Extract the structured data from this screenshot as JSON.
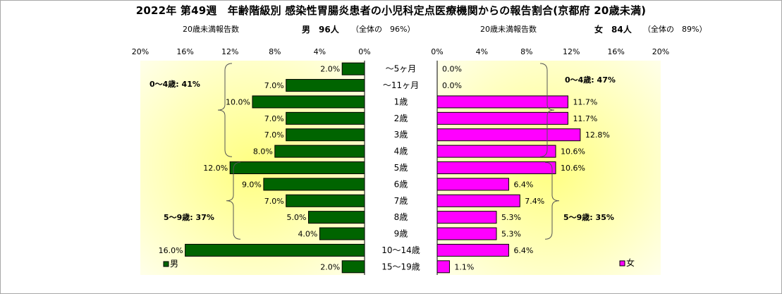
{
  "title": "2022年 第49週　年齢階級別 感染性胃腸炎患者の小児科定点医療機関からの報告割合(京都府 20歳未満)",
  "male_header": {
    "label": "20歳未満報告数",
    "count": "男　96人",
    "share": "（全体の　96%）"
  },
  "female_header": {
    "label": "20歳未満報告数",
    "count": "女　84人",
    "share": "（全体の　89%）"
  },
  "colors": {
    "male": "#006400",
    "female": "#ff00ff",
    "plot_fill": "#fffff0",
    "plot_glow": "#ffff80"
  },
  "chart_data": [
    {
      "type": "bar",
      "orientation": "horizontal",
      "side": "left",
      "categories": [
        "～5ヶ月",
        "～11ヶ月",
        "1歳",
        "2歳",
        "3歳",
        "4歳",
        "5歳",
        "6歳",
        "7歳",
        "8歳",
        "9歳",
        "10～14歳",
        "15～19歳"
      ],
      "series": [
        {
          "name": "男",
          "values": [
            2.0,
            7.0,
            10.0,
            7.0,
            7.0,
            8.0,
            12.0,
            9.0,
            7.0,
            5.0,
            4.0,
            16.0,
            2.0
          ]
        }
      ],
      "data_labels": [
        "2.0%",
        "7.0%",
        "10.0%",
        "7.0%",
        "7.0%",
        "8.0%",
        "12.0%",
        "9.0%",
        "7.0%",
        "5.0%",
        "4.0%",
        "16.0%",
        "2.0%"
      ],
      "xlim": [
        0,
        20
      ],
      "x_direction": "reversed",
      "xticks": [
        "20%",
        "16%",
        "12%",
        "8%",
        "4%",
        "0%"
      ],
      "groups": [
        {
          "label": "0～4歳: 41%"
        },
        {
          "label": "5～9歳: 37%"
        }
      ]
    },
    {
      "type": "bar",
      "orientation": "horizontal",
      "side": "right",
      "categories": [
        "～5ヶ月",
        "～11ヶ月",
        "1歳",
        "2歳",
        "3歳",
        "4歳",
        "5歳",
        "6歳",
        "7歳",
        "8歳",
        "9歳",
        "10～14歳",
        "15～19歳"
      ],
      "series": [
        {
          "name": "女",
          "values": [
            0.0,
            0.0,
            11.7,
            11.7,
            12.8,
            10.6,
            10.6,
            6.4,
            7.4,
            5.3,
            5.3,
            6.4,
            1.1
          ]
        }
      ],
      "data_labels": [
        "0.0%",
        "0.0%",
        "11.7%",
        "11.7%",
        "12.8%",
        "10.6%",
        "10.6%",
        "6.4%",
        "7.4%",
        "5.3%",
        "5.3%",
        "6.4%",
        "1.1%"
      ],
      "xlim": [
        0,
        20
      ],
      "xticks": [
        "0%",
        "4%",
        "8%",
        "12%",
        "16%",
        "20%"
      ],
      "groups": [
        {
          "label": "0～4歳: 47%"
        },
        {
          "label": "5～9歳: 35%"
        }
      ]
    }
  ]
}
